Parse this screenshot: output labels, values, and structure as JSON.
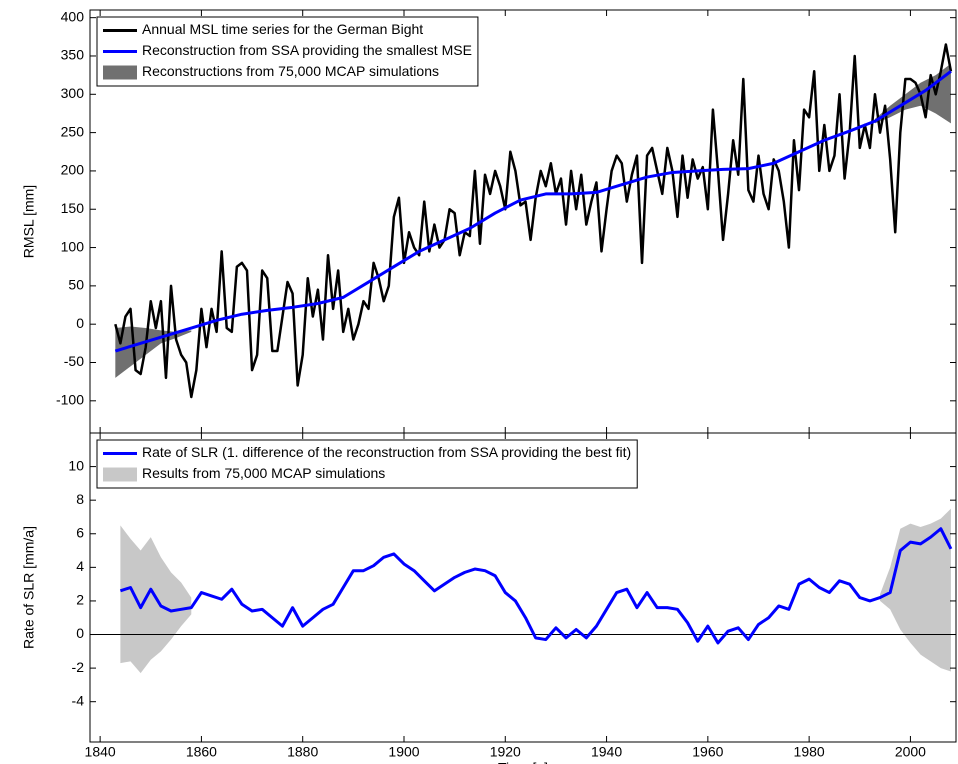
{
  "chart_data": [
    {
      "type": "line",
      "ylabel": "RMSL [mm]",
      "xlim": [
        1838,
        2009
      ],
      "ylim": [
        -142,
        410
      ],
      "xticks": [
        1840,
        1860,
        1880,
        1900,
        1920,
        1940,
        1960,
        1980,
        2000
      ],
      "xtick_labels": false,
      "yticks": [
        -100,
        -50,
        0,
        50,
        100,
        150,
        200,
        250,
        300,
        350,
        400
      ],
      "legend": "upper left",
      "series": [
        {
          "name": "Annual MSL time series for the German Bight",
          "color": "#000000",
          "x": [
            1843,
            1844,
            1845,
            1846,
            1847,
            1848,
            1849,
            1850,
            1851,
            1852,
            1853,
            1854,
            1855,
            1856,
            1857,
            1858,
            1859,
            1860,
            1861,
            1862,
            1863,
            1864,
            1865,
            1866,
            1867,
            1868,
            1869,
            1870,
            1871,
            1872,
            1873,
            1874,
            1875,
            1876,
            1877,
            1878,
            1879,
            1880,
            1881,
            1882,
            1883,
            1884,
            1885,
            1886,
            1887,
            1888,
            1889,
            1890,
            1891,
            1892,
            1893,
            1894,
            1895,
            1896,
            1897,
            1898,
            1899,
            1900,
            1901,
            1902,
            1903,
            1904,
            1905,
            1906,
            1907,
            1908,
            1909,
            1910,
            1911,
            1912,
            1913,
            1914,
            1915,
            1916,
            1917,
            1918,
            1919,
            1920,
            1921,
            1922,
            1923,
            1924,
            1925,
            1926,
            1927,
            1928,
            1929,
            1930,
            1931,
            1932,
            1933,
            1934,
            1935,
            1936,
            1937,
            1938,
            1939,
            1940,
            1941,
            1942,
            1943,
            1944,
            1945,
            1946,
            1947,
            1948,
            1949,
            1950,
            1951,
            1952,
            1953,
            1954,
            1955,
            1956,
            1957,
            1958,
            1959,
            1960,
            1961,
            1962,
            1963,
            1964,
            1965,
            1966,
            1967,
            1968,
            1969,
            1970,
            1971,
            1972,
            1973,
            1974,
            1975,
            1976,
            1977,
            1978,
            1979,
            1980,
            1981,
            1982,
            1983,
            1984,
            1985,
            1986,
            1987,
            1988,
            1989,
            1990,
            1991,
            1992,
            1993,
            1994,
            1995,
            1996,
            1997,
            1998,
            1999,
            2000,
            2001,
            2002,
            2003,
            2004,
            2005,
            2006,
            2007,
            2008
          ],
          "values": [
            0,
            -25,
            10,
            20,
            -60,
            -65,
            -30,
            30,
            -5,
            30,
            -70,
            50,
            -20,
            -40,
            -50,
            -95,
            -60,
            20,
            -30,
            20,
            -10,
            95,
            -5,
            -10,
            75,
            80,
            70,
            -60,
            -40,
            70,
            60,
            -35,
            -35,
            10,
            55,
            40,
            -80,
            -40,
            60,
            10,
            45,
            -20,
            90,
            20,
            70,
            -10,
            20,
            -20,
            0,
            30,
            20,
            80,
            60,
            30,
            50,
            140,
            165,
            80,
            120,
            100,
            90,
            160,
            95,
            130,
            100,
            110,
            150,
            145,
            90,
            120,
            115,
            200,
            105,
            195,
            170,
            200,
            180,
            150,
            225,
            200,
            155,
            160,
            110,
            165,
            200,
            180,
            210,
            170,
            190,
            130,
            200,
            150,
            195,
            130,
            160,
            185,
            95,
            150,
            200,
            220,
            210,
            160,
            195,
            220,
            80,
            220,
            230,
            200,
            170,
            230,
            200,
            140,
            220,
            165,
            215,
            190,
            205,
            150,
            280,
            200,
            110,
            170,
            240,
            195,
            320,
            175,
            160,
            220,
            170,
            150,
            215,
            200,
            160,
            100,
            240,
            175,
            280,
            270,
            330,
            200,
            260,
            200,
            220,
            300,
            190,
            250,
            350,
            230,
            260,
            230,
            300,
            250,
            285,
            215,
            120,
            250,
            320,
            320,
            315,
            300,
            270,
            325,
            300,
            330,
            365,
            330
          ]
        },
        {
          "name": "Reconstruction from SSA providing the smallest MSE",
          "color": "#0000ff",
          "x": [
            1843,
            1848,
            1853,
            1858,
            1863,
            1868,
            1873,
            1878,
            1883,
            1888,
            1893,
            1898,
            1903,
            1908,
            1913,
            1918,
            1923,
            1928,
            1933,
            1938,
            1943,
            1948,
            1953,
            1958,
            1963,
            1968,
            1973,
            1978,
            1983,
            1988,
            1993,
            1998,
            2003,
            2008
          ],
          "values": [
            -35,
            -25,
            -15,
            -5,
            5,
            13,
            18,
            22,
            27,
            35,
            55,
            75,
            95,
            110,
            125,
            145,
            162,
            170,
            170,
            172,
            182,
            192,
            198,
            200,
            202,
            203,
            210,
            225,
            240,
            252,
            265,
            285,
            305,
            330
          ]
        }
      ],
      "bands": [
        {
          "name": "Reconstructions from 75,000 MCAP simulations",
          "color": "#707070",
          "segments": [
            {
              "x": [
                1843,
                1846,
                1849,
                1852,
                1855,
                1858
              ],
              "lower": [
                -70,
                -55,
                -40,
                -25,
                -18,
                -10
              ],
              "upper": [
                -5,
                -3,
                -5,
                -8,
                -10,
                -8
              ]
            },
            {
              "x": [
                1993,
                1996,
                1999,
                2002,
                2005,
                2008
              ],
              "lower": [
                262,
                270,
                280,
                285,
                275,
                262
              ],
              "upper": [
                268,
                285,
                300,
                315,
                325,
                340
              ]
            }
          ]
        }
      ]
    },
    {
      "type": "line",
      "xlabel": "Time [a]",
      "ylabel": "Rate of SLR [mm/a]",
      "xlim": [
        1838,
        2009
      ],
      "ylim": [
        -6.4,
        12
      ],
      "xticks": [
        1840,
        1860,
        1880,
        1900,
        1920,
        1940,
        1960,
        1980,
        2000
      ],
      "xtick_labels": true,
      "yticks": [
        -4,
        -2,
        0,
        2,
        4,
        6,
        8,
        10
      ],
      "legend": "upper left",
      "reference_line": 0,
      "series": [
        {
          "name": "Rate of SLR (1. difference of the reconstruction from SSA providing the best fit)",
          "color": "#0000ff",
          "x": [
            1844,
            1846,
            1848,
            1850,
            1852,
            1854,
            1856,
            1858,
            1860,
            1862,
            1864,
            1866,
            1868,
            1870,
            1872,
            1874,
            1876,
            1878,
            1880,
            1882,
            1884,
            1886,
            1888,
            1890,
            1892,
            1894,
            1896,
            1898,
            1900,
            1902,
            1904,
            1906,
            1908,
            1910,
            1912,
            1914,
            1916,
            1918,
            1920,
            1922,
            1924,
            1926,
            1928,
            1930,
            1932,
            1934,
            1936,
            1938,
            1940,
            1942,
            1944,
            1946,
            1948,
            1950,
            1952,
            1954,
            1956,
            1958,
            1960,
            1962,
            1964,
            1966,
            1968,
            1970,
            1972,
            1974,
            1976,
            1978,
            1980,
            1982,
            1984,
            1986,
            1988,
            1990,
            1992,
            1994,
            1996,
            1998,
            2000,
            2002,
            2004,
            2006,
            2008
          ],
          "values": [
            2.6,
            2.8,
            1.6,
            2.7,
            1.7,
            1.4,
            1.5,
            1.6,
            2.5,
            2.3,
            2.1,
            2.7,
            1.8,
            1.4,
            1.5,
            1.0,
            0.5,
            1.6,
            0.5,
            1.0,
            1.5,
            1.8,
            2.8,
            3.8,
            3.8,
            4.1,
            4.6,
            4.8,
            4.2,
            3.8,
            3.2,
            2.6,
            3.0,
            3.4,
            3.7,
            3.9,
            3.8,
            3.5,
            2.5,
            2.0,
            1.0,
            -0.2,
            -0.3,
            0.4,
            -0.2,
            0.3,
            -0.2,
            0.5,
            1.5,
            2.5,
            2.7,
            1.6,
            2.5,
            1.6,
            1.6,
            1.5,
            0.7,
            -0.4,
            0.5,
            -0.5,
            0.2,
            0.4,
            -0.3,
            0.6,
            1.0,
            1.7,
            1.5,
            3.0,
            3.3,
            2.8,
            2.5,
            3.2,
            3.0,
            2.2,
            2.0,
            2.2,
            2.5,
            5.0,
            5.5,
            5.4,
            5.8,
            6.3,
            5.1
          ]
        }
      ],
      "bands": [
        {
          "name": "Results from 75,000 MCAP simulations",
          "color": "#c8c8c8",
          "segments": [
            {
              "x": [
                1844,
                1846,
                1848,
                1850,
                1852,
                1854,
                1856,
                1858
              ],
              "lower": [
                -1.7,
                -1.6,
                -2.3,
                -1.5,
                -1.0,
                -0.3,
                0.5,
                1.2
              ],
              "upper": [
                6.5,
                5.7,
                5.0,
                5.8,
                4.6,
                3.7,
                3.1,
                2.2
              ]
            },
            {
              "x": [
                1994,
                1996,
                1998,
                2000,
                2002,
                2004,
                2006,
                2008
              ],
              "lower": [
                2.0,
                1.5,
                0.3,
                -0.5,
                -1.2,
                -1.6,
                -2.0,
                -2.2
              ],
              "upper": [
                2.4,
                4.0,
                6.3,
                6.6,
                6.4,
                6.6,
                6.9,
                7.5
              ]
            }
          ]
        }
      ]
    }
  ]
}
